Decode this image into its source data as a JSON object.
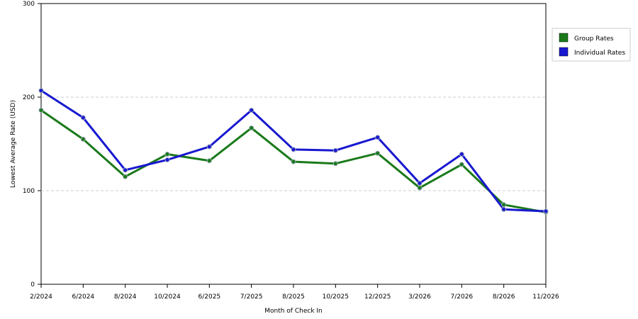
{
  "chart_data": {
    "type": "line",
    "categories": [
      "2/2024",
      "6/2024",
      "8/2024",
      "10/2024",
      "6/2025",
      "7/2025",
      "8/2025",
      "10/2025",
      "12/2025",
      "3/2026",
      "7/2026",
      "8/2026",
      "11/2026"
    ],
    "series": [
      {
        "name": "Group Rates",
        "color": "#1a7a1a",
        "values": [
          186,
          155,
          115,
          139,
          132,
          167,
          131,
          129,
          140,
          103,
          128,
          85,
          77
        ]
      },
      {
        "name": "Individual Rates",
        "color": "#1818d0",
        "values": [
          207,
          178,
          122,
          133,
          147,
          186,
          144,
          143,
          157,
          108,
          139,
          80,
          78
        ]
      }
    ],
    "xlabel": "Month of Check In",
    "ylabel": "Lowest Average Rate (USD)",
    "ylim": [
      0,
      300
    ],
    "yticks": [
      0,
      100,
      200,
      300
    ],
    "grid": "horizontal dashed",
    "legend_position": "right"
  }
}
